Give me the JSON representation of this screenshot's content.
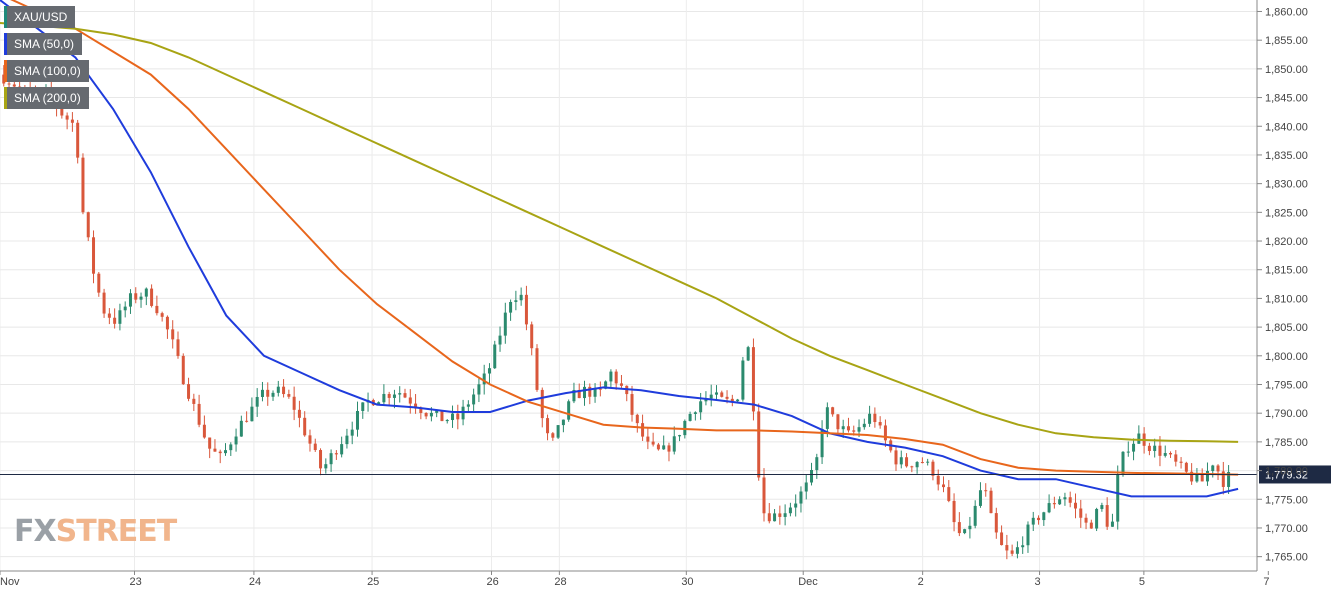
{
  "legend": [
    {
      "label": "XAU/USD",
      "color": "#1f8a7a"
    },
    {
      "label": "SMA (50,0)",
      "color": "#1f3cdc"
    },
    {
      "label": "SMA (100,0)",
      "color": "#e8661c"
    },
    {
      "label": "SMA (200,0)",
      "color": "#a8a414"
    }
  ],
  "watermark": {
    "part1": "FX",
    "part2": "STREET"
  },
  "current_price_label": "1,779.32",
  "chart_data": {
    "type": "candlestick",
    "title": "",
    "xlabel": "",
    "ylabel": "",
    "ylim": [
      1762.5,
      1862
    ],
    "yticks": [
      1765,
      1770,
      1775,
      1780,
      1785,
      1790,
      1795,
      1800,
      1805,
      1810,
      1815,
      1820,
      1825,
      1830,
      1835,
      1840,
      1845,
      1850,
      1855,
      1860
    ],
    "xlim": [
      0,
      100
    ],
    "xticks": [
      {
        "x": 0,
        "label": "Nov"
      },
      {
        "x": 10.7,
        "label": "23"
      },
      {
        "x": 20.2,
        "label": "24"
      },
      {
        "x": 29.6,
        "label": "25"
      },
      {
        "x": 39.1,
        "label": "26"
      },
      {
        "x": 44.5,
        "label": "28"
      },
      {
        "x": 54.6,
        "label": "30"
      },
      {
        "x": 63.9,
        "label": "Dec"
      },
      {
        "x": 73.4,
        "label": "2"
      },
      {
        "x": 82.7,
        "label": "3"
      },
      {
        "x": 91.0,
        "label": "5"
      },
      {
        "x": 100.9,
        "label": "7"
      }
    ],
    "grid": true,
    "last_price": 1779.32,
    "candle_colors": {
      "up": "#2b8a6e",
      "down": "#d9573b"
    },
    "price_path": [
      [
        0,
        1849
      ],
      [
        2,
        1846
      ],
      [
        4,
        1845
      ],
      [
        5,
        1842
      ],
      [
        6,
        1840
      ],
      [
        6.6,
        1825
      ],
      [
        7.4,
        1815
      ],
      [
        8.2,
        1808
      ],
      [
        9.2,
        1806
      ],
      [
        10.4,
        1810
      ],
      [
        11.6,
        1811
      ],
      [
        12.6,
        1808
      ],
      [
        13.6,
        1803
      ],
      [
        14.6,
        1796
      ],
      [
        15.6,
        1790
      ],
      [
        16.6,
        1784
      ],
      [
        17.6,
        1782
      ],
      [
        18.8,
        1787
      ],
      [
        19.8,
        1790
      ],
      [
        20.8,
        1793
      ],
      [
        22.0,
        1794
      ],
      [
        23.2,
        1792
      ],
      [
        24.4,
        1786
      ],
      [
        25.6,
        1780
      ],
      [
        26.8,
        1784
      ],
      [
        28.0,
        1788
      ],
      [
        29.2,
        1792
      ],
      [
        30.4,
        1793
      ],
      [
        31.6,
        1794
      ],
      [
        32.8,
        1792
      ],
      [
        34.0,
        1790
      ],
      [
        35.2,
        1789
      ],
      [
        36.4,
        1789
      ],
      [
        37.6,
        1793
      ],
      [
        38.8,
        1797
      ],
      [
        39.8,
        1804
      ],
      [
        40.6,
        1810
      ],
      [
        41.4,
        1811
      ],
      [
        42.2,
        1802
      ],
      [
        43.0,
        1790
      ],
      [
        43.8,
        1784
      ],
      [
        44.6,
        1788
      ],
      [
        45.6,
        1793
      ],
      [
        46.6,
        1794
      ],
      [
        47.6,
        1793
      ],
      [
        48.6,
        1797
      ],
      [
        49.6,
        1794
      ],
      [
        50.6,
        1788
      ],
      [
        51.6,
        1784
      ],
      [
        52.6,
        1783
      ],
      [
        53.6,
        1785
      ],
      [
        54.6,
        1789
      ],
      [
        55.6,
        1792
      ],
      [
        56.6,
        1793
      ],
      [
        57.6,
        1792
      ],
      [
        58.6,
        1792
      ],
      [
        59.4,
        1804
      ],
      [
        60.0,
        1790
      ],
      [
        60.6,
        1773
      ],
      [
        61.4,
        1772
      ],
      [
        62.4,
        1773
      ],
      [
        63.4,
        1775
      ],
      [
        64.4,
        1778
      ],
      [
        65.0,
        1782
      ],
      [
        65.6,
        1791
      ],
      [
        66.6,
        1788
      ],
      [
        67.6,
        1786
      ],
      [
        68.6,
        1788
      ],
      [
        69.4,
        1790
      ],
      [
        70.2,
        1786
      ],
      [
        71.2,
        1782
      ],
      [
        72.2,
        1781
      ],
      [
        73.2,
        1782
      ],
      [
        74.2,
        1780
      ],
      [
        75.2,
        1776
      ],
      [
        76.0,
        1770
      ],
      [
        76.6,
        1768
      ],
      [
        77.4,
        1772
      ],
      [
        78.2,
        1778
      ],
      [
        79.0,
        1770
      ],
      [
        79.8,
        1766
      ],
      [
        80.6,
        1765
      ],
      [
        81.6,
        1769
      ],
      [
        82.6,
        1772
      ],
      [
        83.6,
        1774
      ],
      [
        84.6,
        1776
      ],
      [
        85.6,
        1773
      ],
      [
        86.6,
        1770
      ],
      [
        87.6,
        1774
      ],
      [
        88.4,
        1769
      ],
      [
        89.0,
        1780
      ],
      [
        89.6,
        1784
      ],
      [
        90.6,
        1786
      ],
      [
        91.6,
        1784
      ],
      [
        92.6,
        1783
      ],
      [
        93.6,
        1781
      ],
      [
        94.6,
        1779
      ],
      [
        95.6,
        1778
      ],
      [
        96.6,
        1782
      ],
      [
        97.2,
        1778
      ],
      [
        97.8,
        1779
      ]
    ],
    "series": [
      {
        "name": "SMA (50,0)",
        "color": "#1f3cdc",
        "points": [
          [
            0,
            1862
          ],
          [
            3,
            1857
          ],
          [
            6,
            1852
          ],
          [
            9,
            1843
          ],
          [
            12,
            1832
          ],
          [
            15,
            1819
          ],
          [
            18,
            1807
          ],
          [
            21,
            1800
          ],
          [
            24,
            1797
          ],
          [
            27,
            1794
          ],
          [
            30,
            1791.5
          ],
          [
            33,
            1791
          ],
          [
            36,
            1790.2
          ],
          [
            39,
            1790.2
          ],
          [
            42,
            1792.2
          ],
          [
            45,
            1793.5
          ],
          [
            48,
            1794.5
          ],
          [
            51,
            1794
          ],
          [
            54,
            1793
          ],
          [
            57,
            1792.3
          ],
          [
            60,
            1791.5
          ],
          [
            63,
            1789.5
          ],
          [
            66,
            1786.5
          ],
          [
            69,
            1785
          ],
          [
            72,
            1784
          ],
          [
            75,
            1782.5
          ],
          [
            78,
            1780
          ],
          [
            81,
            1778.5
          ],
          [
            84,
            1778.5
          ],
          [
            87,
            1777
          ],
          [
            90,
            1775.5
          ],
          [
            93,
            1775.5
          ],
          [
            96,
            1775.5
          ],
          [
            98.5,
            1776.8
          ]
        ]
      },
      {
        "name": "SMA (100,0)",
        "color": "#e8661c",
        "points": [
          [
            0,
            1863
          ],
          [
            3,
            1860
          ],
          [
            6,
            1857
          ],
          [
            9,
            1853
          ],
          [
            12,
            1849
          ],
          [
            15,
            1843
          ],
          [
            18,
            1836
          ],
          [
            21,
            1829
          ],
          [
            24,
            1822
          ],
          [
            27,
            1815
          ],
          [
            30,
            1809
          ],
          [
            33,
            1804
          ],
          [
            36,
            1799
          ],
          [
            39,
            1795
          ],
          [
            42,
            1792
          ],
          [
            45,
            1790
          ],
          [
            48,
            1788
          ],
          [
            51,
            1787.5
          ],
          [
            54,
            1787.3
          ],
          [
            57,
            1787
          ],
          [
            60,
            1787
          ],
          [
            63,
            1786.8
          ],
          [
            66,
            1786.5
          ],
          [
            69,
            1786.2
          ],
          [
            72,
            1785.5
          ],
          [
            75,
            1784.5
          ],
          [
            78,
            1782
          ],
          [
            81,
            1780.5
          ],
          [
            84,
            1780
          ],
          [
            87,
            1779.8
          ],
          [
            90,
            1779.6
          ],
          [
            93,
            1779.5
          ],
          [
            96,
            1779.4
          ],
          [
            98.5,
            1779.3
          ]
        ]
      },
      {
        "name": "SMA (200,0)",
        "color": "#a8a414",
        "points": [
          [
            0,
            1858
          ],
          [
            3,
            1857.5
          ],
          [
            6,
            1857
          ],
          [
            9,
            1856
          ],
          [
            12,
            1854.5
          ],
          [
            15,
            1852
          ],
          [
            18,
            1849
          ],
          [
            21,
            1846
          ],
          [
            24,
            1843
          ],
          [
            27,
            1840
          ],
          [
            30,
            1837
          ],
          [
            33,
            1834
          ],
          [
            36,
            1831
          ],
          [
            39,
            1828
          ],
          [
            42,
            1825
          ],
          [
            45,
            1822
          ],
          [
            48,
            1819
          ],
          [
            51,
            1816
          ],
          [
            54,
            1813
          ],
          [
            57,
            1810
          ],
          [
            60,
            1806.5
          ],
          [
            63,
            1803
          ],
          [
            66,
            1800
          ],
          [
            69,
            1797.5
          ],
          [
            72,
            1795
          ],
          [
            75,
            1792.5
          ],
          [
            78,
            1790
          ],
          [
            81,
            1788
          ],
          [
            84,
            1786.5
          ],
          [
            87,
            1785.8
          ],
          [
            90,
            1785.4
          ],
          [
            93,
            1785.2
          ],
          [
            96,
            1785.1
          ],
          [
            98.5,
            1785
          ]
        ]
      }
    ]
  }
}
